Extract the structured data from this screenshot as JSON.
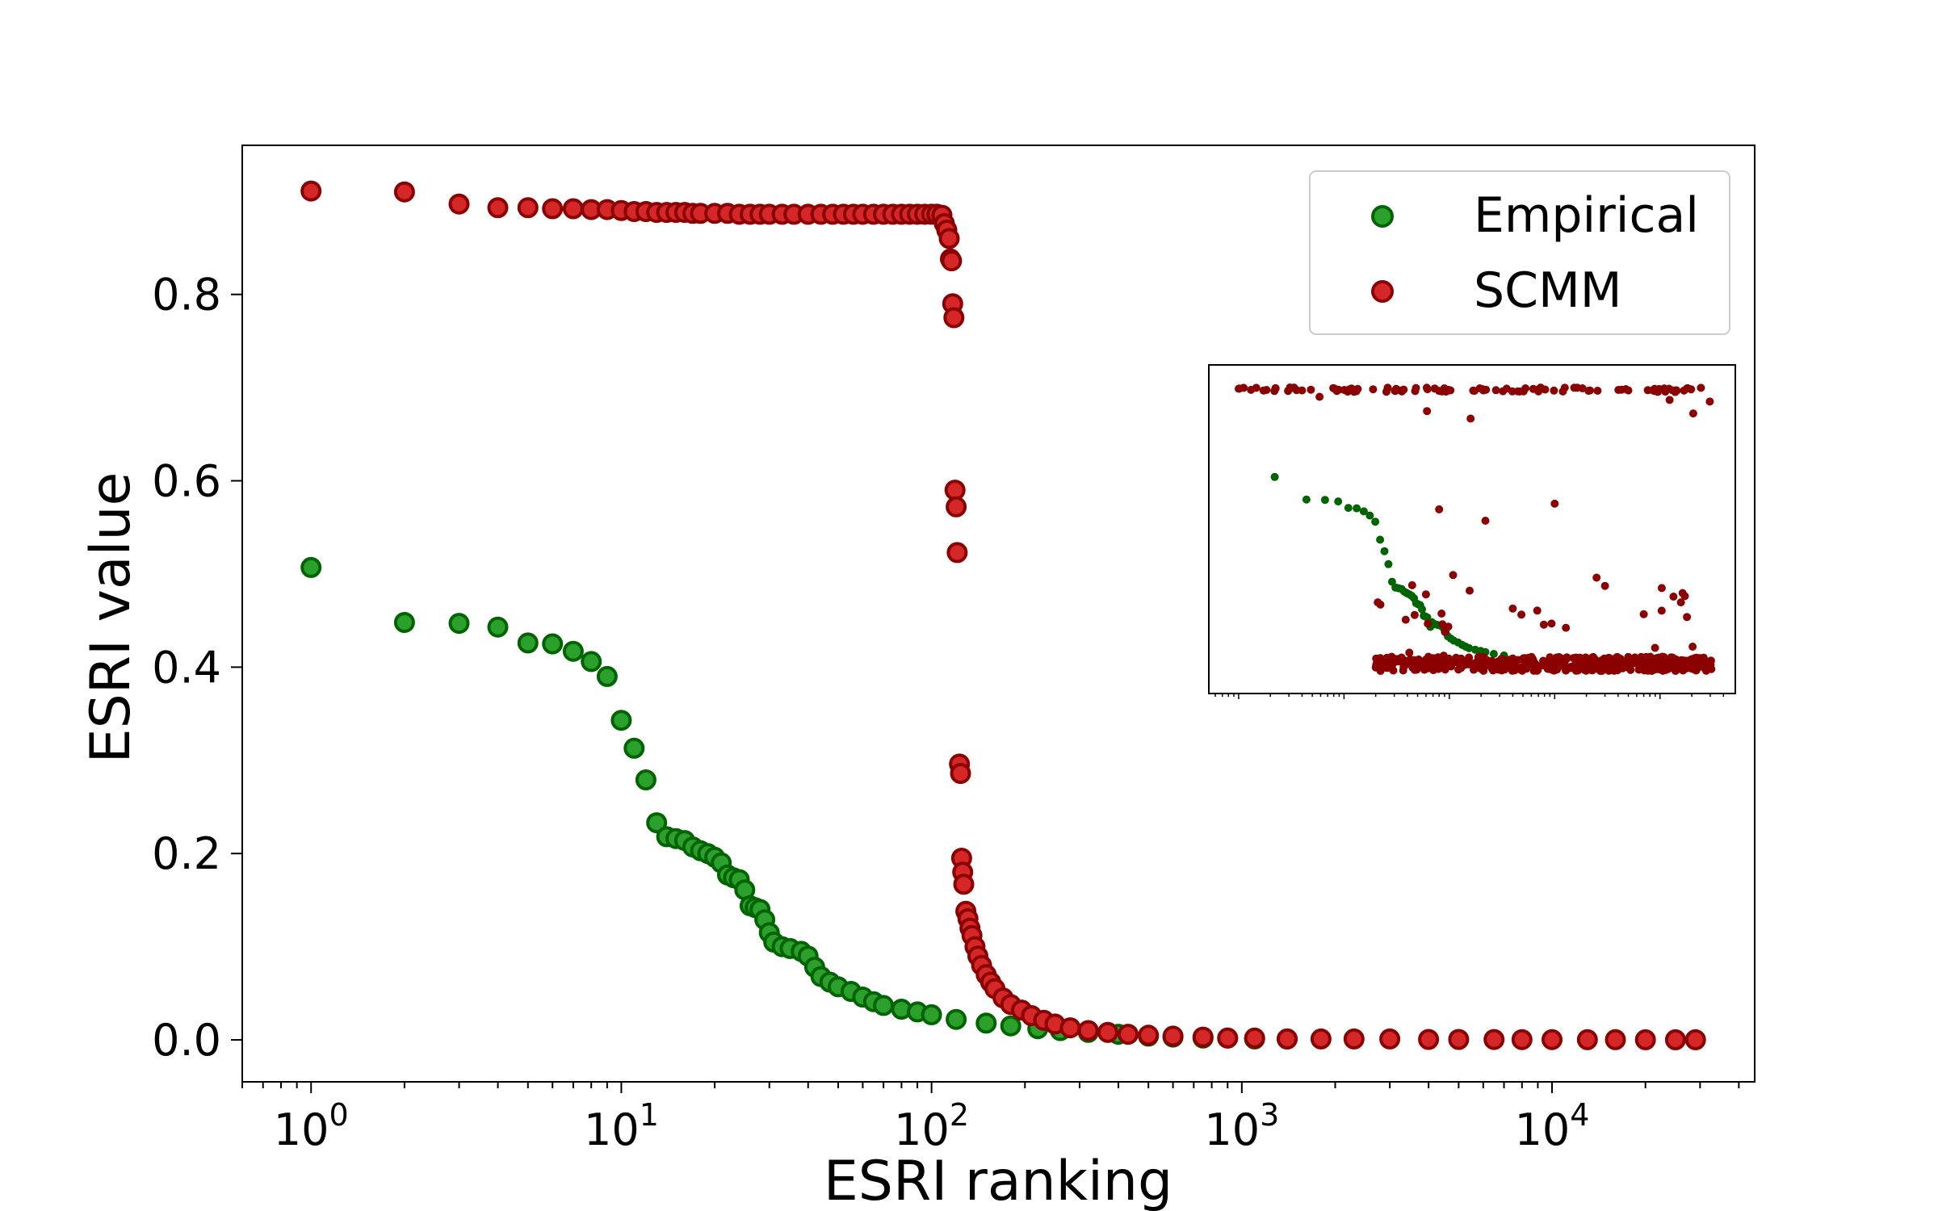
{
  "chart_data": {
    "type": "scatter",
    "title": "",
    "xlabel": "ESRI ranking",
    "ylabel": "ESRI value",
    "xscale": "log",
    "xlim": [
      0.6,
      45000
    ],
    "ylim": [
      -0.045,
      0.96
    ],
    "x_ticks": [
      {
        "value": 1,
        "base": "10",
        "exp": "0"
      },
      {
        "value": 10,
        "base": "10",
        "exp": "1"
      },
      {
        "value": 100,
        "base": "10",
        "exp": "2"
      },
      {
        "value": 1000,
        "base": "10",
        "exp": "3"
      },
      {
        "value": 10000,
        "base": "10",
        "exp": "4"
      }
    ],
    "y_ticks": [
      "0.0",
      "0.2",
      "0.4",
      "0.6",
      "0.8"
    ],
    "grid": false,
    "legend": {
      "placement": "top-right"
    },
    "series": [
      {
        "name": "Empirical",
        "face": "#2ca02c",
        "edge": "#006400",
        "points": [
          [
            1,
            0.507
          ],
          [
            2,
            0.448
          ],
          [
            3,
            0.447
          ],
          [
            4,
            0.443
          ],
          [
            5,
            0.426
          ],
          [
            6,
            0.425
          ],
          [
            7,
            0.417
          ],
          [
            8,
            0.406
          ],
          [
            9,
            0.39
          ],
          [
            10,
            0.343
          ],
          [
            11,
            0.313
          ],
          [
            12,
            0.279
          ],
          [
            13,
            0.233
          ],
          [
            14,
            0.218
          ],
          [
            15,
            0.216
          ],
          [
            16,
            0.214
          ],
          [
            17,
            0.207
          ],
          [
            18,
            0.203
          ],
          [
            19,
            0.2
          ],
          [
            20,
            0.196
          ],
          [
            21,
            0.19
          ],
          [
            22,
            0.177
          ],
          [
            23,
            0.174
          ],
          [
            24,
            0.172
          ],
          [
            25,
            0.161
          ],
          [
            26,
            0.144
          ],
          [
            27,
            0.142
          ],
          [
            28,
            0.14
          ],
          [
            29,
            0.129
          ],
          [
            30,
            0.115
          ],
          [
            31,
            0.105
          ],
          [
            33,
            0.1
          ],
          [
            35,
            0.098
          ],
          [
            38,
            0.095
          ],
          [
            40,
            0.09
          ],
          [
            42,
            0.078
          ],
          [
            44,
            0.068
          ],
          [
            47,
            0.062
          ],
          [
            50,
            0.057
          ],
          [
            55,
            0.052
          ],
          [
            60,
            0.046
          ],
          [
            65,
            0.041
          ],
          [
            70,
            0.037
          ],
          [
            80,
            0.033
          ],
          [
            90,
            0.03
          ],
          [
            100,
            0.027
          ],
          [
            120,
            0.022
          ],
          [
            150,
            0.018
          ],
          [
            180,
            0.015
          ],
          [
            220,
            0.012
          ],
          [
            260,
            0.01
          ],
          [
            320,
            0.008
          ],
          [
            400,
            0.006
          ],
          [
            500,
            0.004
          ],
          [
            600,
            0.003
          ],
          [
            750,
            0.002
          ],
          [
            900,
            0.002
          ],
          [
            1100,
            0.001
          ],
          [
            1400,
            0.001
          ]
        ]
      },
      {
        "name": "SCMM",
        "face": "#d62728",
        "edge": "#8b0000",
        "points": [
          [
            1,
            0.911
          ],
          [
            2,
            0.91
          ],
          [
            3,
            0.897
          ],
          [
            4,
            0.893
          ],
          [
            5,
            0.893
          ],
          [
            6,
            0.892
          ],
          [
            7,
            0.892
          ],
          [
            8,
            0.891
          ],
          [
            9,
            0.891
          ],
          [
            10,
            0.89
          ],
          [
            11,
            0.889
          ],
          [
            12,
            0.889
          ],
          [
            13,
            0.888
          ],
          [
            14,
            0.888
          ],
          [
            15,
            0.888
          ],
          [
            16,
            0.888
          ],
          [
            17,
            0.887
          ],
          [
            18,
            0.887
          ],
          [
            20,
            0.887
          ],
          [
            22,
            0.887
          ],
          [
            24,
            0.886
          ],
          [
            26,
            0.886
          ],
          [
            28,
            0.886
          ],
          [
            30,
            0.886
          ],
          [
            33,
            0.886
          ],
          [
            36,
            0.886
          ],
          [
            40,
            0.886
          ],
          [
            44,
            0.886
          ],
          [
            48,
            0.886
          ],
          [
            52,
            0.886
          ],
          [
            56,
            0.886
          ],
          [
            60,
            0.886
          ],
          [
            65,
            0.886
          ],
          [
            70,
            0.886
          ],
          [
            75,
            0.886
          ],
          [
            80,
            0.886
          ],
          [
            85,
            0.886
          ],
          [
            90,
            0.886
          ],
          [
            95,
            0.886
          ],
          [
            100,
            0.886
          ],
          [
            104,
            0.886
          ],
          [
            108,
            0.885
          ],
          [
            110,
            0.876
          ],
          [
            112,
            0.869
          ],
          [
            114,
            0.86
          ],
          [
            115,
            0.838
          ],
          [
            116,
            0.836
          ],
          [
            117,
            0.79
          ],
          [
            118,
            0.775
          ],
          [
            119,
            0.59
          ],
          [
            120,
            0.572
          ],
          [
            121,
            0.523
          ],
          [
            123,
            0.296
          ],
          [
            124,
            0.286
          ],
          [
            125,
            0.195
          ],
          [
            126,
            0.18
          ],
          [
            127,
            0.167
          ],
          [
            129,
            0.138
          ],
          [
            131,
            0.13
          ],
          [
            133,
            0.12
          ],
          [
            135,
            0.112
          ],
          [
            138,
            0.1
          ],
          [
            141,
            0.09
          ],
          [
            145,
            0.08
          ],
          [
            150,
            0.07
          ],
          [
            155,
            0.062
          ],
          [
            160,
            0.055
          ],
          [
            170,
            0.045
          ],
          [
            180,
            0.038
          ],
          [
            195,
            0.032
          ],
          [
            210,
            0.026
          ],
          [
            230,
            0.021
          ],
          [
            250,
            0.017
          ],
          [
            280,
            0.013
          ],
          [
            320,
            0.01
          ],
          [
            370,
            0.008
          ],
          [
            430,
            0.006
          ],
          [
            500,
            0.005
          ],
          [
            600,
            0.004
          ],
          [
            750,
            0.003
          ],
          [
            900,
            0.002
          ],
          [
            1100,
            0.002
          ],
          [
            1400,
            0.001
          ],
          [
            1800,
            0.001
          ],
          [
            2300,
            0.001
          ],
          [
            3000,
            0.001
          ],
          [
            4000,
            0.0005
          ],
          [
            5000,
            0.0005
          ],
          [
            6500,
            0.0004
          ],
          [
            8000,
            0.0003
          ],
          [
            10000,
            0.0003
          ],
          [
            13000,
            0.0002
          ],
          [
            16000,
            0.0002
          ],
          [
            20000,
            0.0001
          ],
          [
            25000,
            0.0001
          ],
          [
            29000,
            0.0001
          ]
        ]
      }
    ]
  }
}
